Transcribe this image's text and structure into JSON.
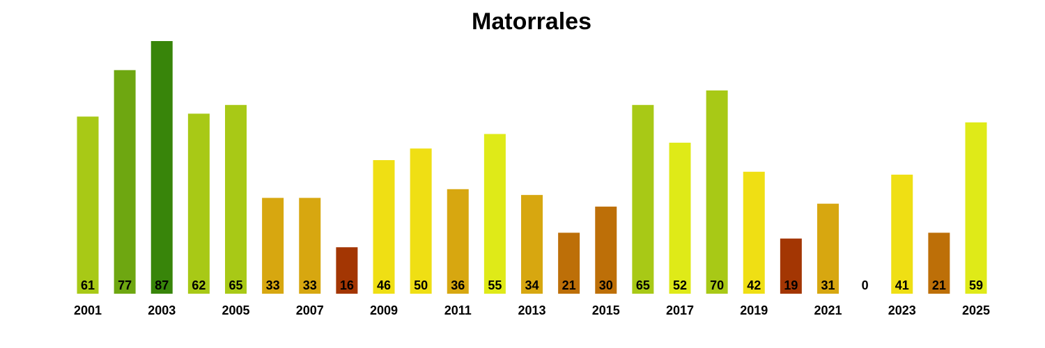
{
  "chart_data": {
    "type": "bar",
    "title": "Matorrales",
    "xlabel": "",
    "ylabel": "",
    "ylim": [
      0,
      87
    ],
    "categories": [
      "2001",
      "2002",
      "2003",
      "2004",
      "2005",
      "2006",
      "2007",
      "2008",
      "2009",
      "2010",
      "2011",
      "2012",
      "2013",
      "2014",
      "2015",
      "2016",
      "2017",
      "2018",
      "2019",
      "2020",
      "2021",
      "2022",
      "2023",
      "2024",
      "2025"
    ],
    "x_tick_labels": [
      "2001",
      "",
      "2003",
      "",
      "2005",
      "",
      "2007",
      "",
      "2009",
      "",
      "2011",
      "",
      "2013",
      "",
      "2015",
      "",
      "2017",
      "",
      "2019",
      "",
      "2021",
      "",
      "2023",
      "",
      "2025"
    ],
    "values": [
      61,
      77,
      87,
      62,
      65,
      33,
      33,
      16,
      46,
      50,
      36,
      55,
      34,
      21,
      30,
      65,
      52,
      70,
      42,
      19,
      31,
      0,
      41,
      21,
      59
    ],
    "colors": [
      "#a8c916",
      "#6ea711",
      "#38850a",
      "#a8c916",
      "#a8c916",
      "#d7a710",
      "#d7a710",
      "#a33603",
      "#efdf14",
      "#efdf14",
      "#d7a710",
      "#dfea18",
      "#d7a710",
      "#bd6f08",
      "#bd6f08",
      "#a8c916",
      "#dfea18",
      "#a8c916",
      "#efdf14",
      "#a33603",
      "#d7a710",
      "#d7a710",
      "#efdf14",
      "#bd6f08",
      "#dfea18"
    ],
    "data_labels": true,
    "grid": false,
    "legend": "none"
  }
}
